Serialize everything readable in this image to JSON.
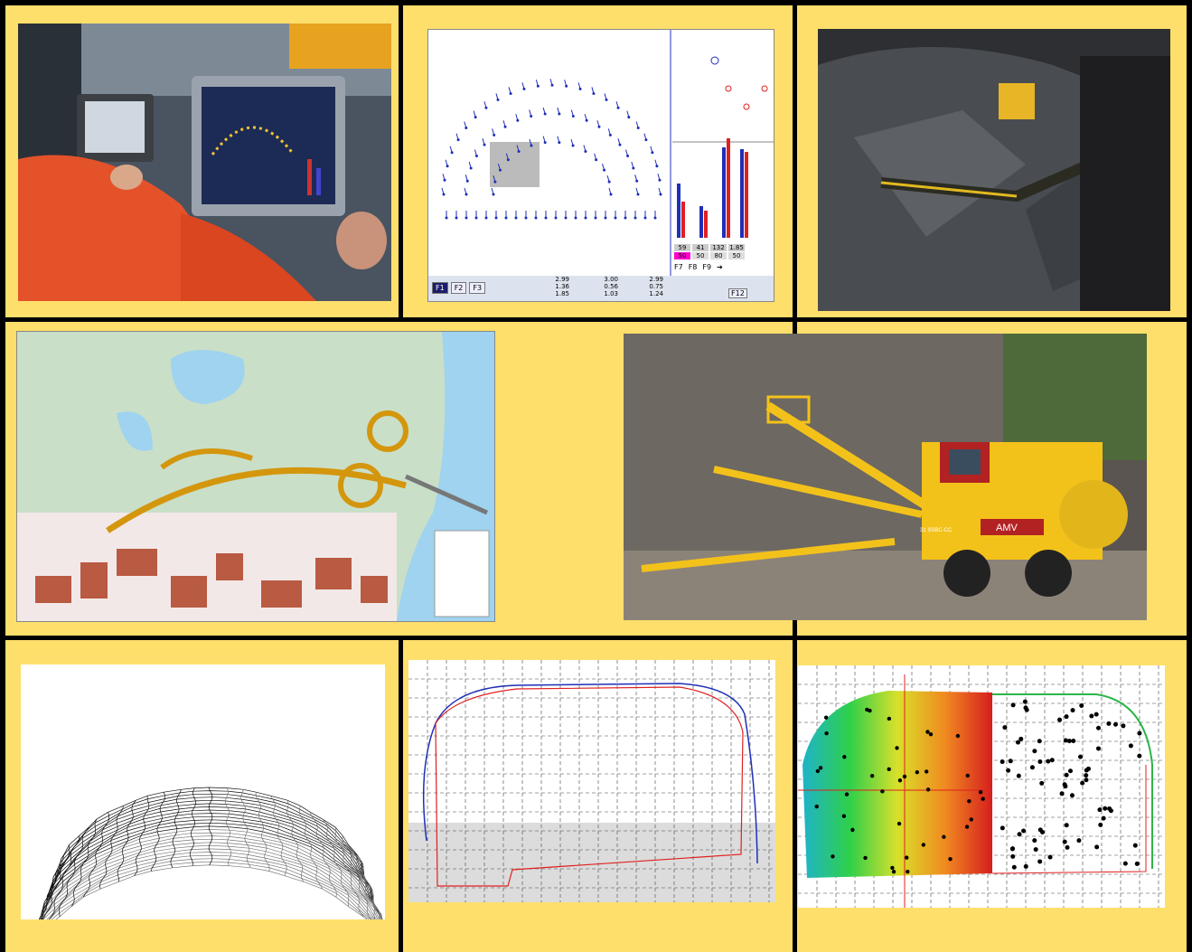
{
  "colors": {
    "background": "#fedf6b",
    "grid_line": "#000000",
    "ui_blue": "#1f2fb8",
    "ui_red": "#e02020",
    "machine_yellow": "#f3c21a"
  },
  "panels": {
    "cab_photo": {
      "icons": [
        "operator-cab-photo"
      ]
    },
    "drill_ui": {
      "fkeys": [
        "F1",
        "F2",
        "F3",
        "F7",
        "F8",
        "F9",
        "F12"
      ],
      "bar_values": [
        "59",
        "41",
        "132",
        "1.85"
      ],
      "bottom_values": [
        "50",
        "50",
        "80",
        "50"
      ],
      "readouts_col1": [
        "2.99",
        "1.36",
        "1.85"
      ],
      "readouts_col2": [
        "3.00",
        "0.56",
        "1.03"
      ],
      "readouts_col3": [
        "2.99",
        "0.75",
        "1.24"
      ]
    },
    "tunnel_photo": {
      "icons": [
        "tunnel-drilling-photo"
      ]
    },
    "map": {
      "icons": [
        "road-interchange-map"
      ]
    },
    "rig_photo": {
      "badge": "AMV",
      "model": "31 SSBC-CC"
    },
    "wireframe": {
      "icons": [
        "tunnel-wireframe-mesh"
      ]
    },
    "profile": {
      "icons": [
        "tunnel-profile-plot"
      ]
    },
    "contour": {
      "icons": [
        "tunnel-contour-plot"
      ]
    }
  }
}
